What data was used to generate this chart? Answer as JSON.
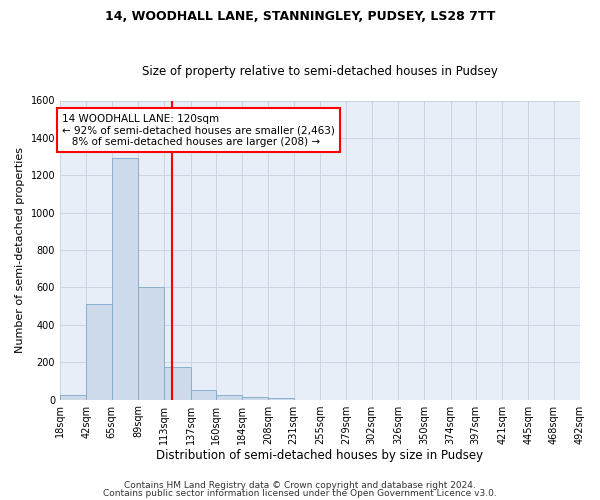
{
  "title": "14, WOODHALL LANE, STANNINGLEY, PUDSEY, LS28 7TT",
  "subtitle": "Size of property relative to semi-detached houses in Pudsey",
  "xlabel": "Distribution of semi-detached houses by size in Pudsey",
  "ylabel": "Number of semi-detached properties",
  "footnote1": "Contains HM Land Registry data © Crown copyright and database right 2024.",
  "footnote2": "Contains public sector information licensed under the Open Government Licence v3.0.",
  "bar_color": "#ccdaeb",
  "bar_edge_color": "#7aaac8",
  "grid_color": "#c8d0e0",
  "background_color": "#e8eef8",
  "property_line_x": 120,
  "property_line_color": "red",
  "annotation_line1": "14 WOODHALL LANE: 120sqm",
  "annotation_line2": "← 92% of semi-detached houses are smaller (2,463)",
  "annotation_line3": "   8% of semi-detached houses are larger (208) →",
  "annotation_box_color": "white",
  "annotation_box_edge": "red",
  "bin_edges": [
    18,
    42,
    65,
    89,
    113,
    137,
    160,
    184,
    208,
    231,
    255,
    279,
    302,
    326,
    350,
    374,
    397,
    421,
    445,
    468,
    492
  ],
  "bar_heights": [
    25,
    510,
    1290,
    600,
    175,
    50,
    25,
    15,
    10,
    0,
    0,
    0,
    0,
    0,
    0,
    0,
    0,
    0,
    0,
    0
  ],
  "ylim": [
    0,
    1600
  ],
  "yticks": [
    0,
    200,
    400,
    600,
    800,
    1000,
    1200,
    1400,
    1600
  ],
  "title_fontsize": 9,
  "subtitle_fontsize": 8.5,
  "ylabel_fontsize": 8,
  "xlabel_fontsize": 8.5,
  "tick_fontsize": 7,
  "annotation_fontsize": 7.5,
  "footnote_fontsize": 6.5
}
